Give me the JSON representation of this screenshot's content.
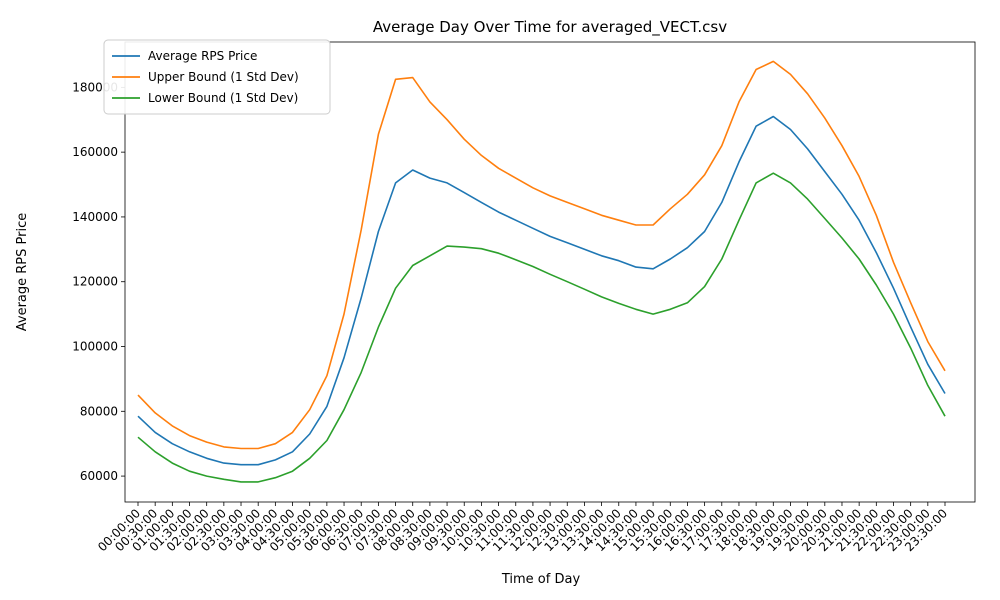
{
  "chart_data": {
    "type": "line",
    "title": "Average Day Over Time for averaged_VECT.csv",
    "xlabel": "Time of Day",
    "ylabel": "Average RPS Price",
    "ylim": [
      52000,
      194000
    ],
    "yticks": [
      60000,
      80000,
      100000,
      120000,
      140000,
      160000,
      180000
    ],
    "grid": false,
    "legend_position": "top-left",
    "categories": [
      "00:00:00",
      "00:30:00",
      "01:00:00",
      "01:30:00",
      "02:00:00",
      "02:30:00",
      "03:00:00",
      "03:30:00",
      "04:00:00",
      "04:30:00",
      "05:00:00",
      "05:30:00",
      "06:00:00",
      "06:30:00",
      "07:00:00",
      "07:30:00",
      "08:00:00",
      "08:30:00",
      "09:00:00",
      "09:30:00",
      "10:00:00",
      "10:30:00",
      "11:00:00",
      "11:30:00",
      "12:00:00",
      "12:30:00",
      "13:00:00",
      "13:30:00",
      "14:00:00",
      "14:30:00",
      "15:00:00",
      "15:30:00",
      "16:00:00",
      "16:30:00",
      "17:00:00",
      "17:30:00",
      "18:00:00",
      "18:30:00",
      "19:00:00",
      "19:30:00",
      "20:00:00",
      "20:30:00",
      "21:00:00",
      "21:30:00",
      "22:00:00",
      "22:30:00",
      "23:00:00",
      "23:30:00"
    ],
    "series": [
      {
        "name": "Average RPS Price",
        "color": "#1f77b4",
        "values": [
          78500,
          73500,
          70000,
          67500,
          65500,
          64000,
          63500,
          63500,
          65000,
          67500,
          73000,
          81500,
          96500,
          115000,
          135500,
          150500,
          154500,
          152000,
          150500,
          147500,
          144500,
          141500,
          139000,
          136500,
          134000,
          132000,
          130000,
          128000,
          126500,
          124500,
          124000,
          127000,
          130500,
          135500,
          144500,
          157000,
          168000,
          171000,
          167000,
          161000,
          154000,
          147000,
          139000,
          129000,
          118000,
          106000,
          94500,
          85500
        ]
      },
      {
        "name": "Upper Bound (1 Std Dev)",
        "color": "#ff7f0e",
        "values": [
          85000,
          79500,
          75500,
          72500,
          70500,
          69000,
          68500,
          68500,
          70000,
          73500,
          80500,
          91000,
          110000,
          136000,
          165500,
          182500,
          183000,
          175500,
          170000,
          164000,
          159000,
          155000,
          152000,
          149000,
          146500,
          144500,
          142500,
          140500,
          139000,
          137500,
          137500,
          142500,
          147000,
          153000,
          162000,
          175500,
          185500,
          188000,
          184000,
          178000,
          170500,
          162000,
          152500,
          140500,
          126000,
          113500,
          101500,
          92500
        ]
      },
      {
        "name": "Lower Bound (1 Std Dev)",
        "color": "#2ca02c",
        "values": [
          72000,
          67500,
          64000,
          61500,
          60000,
          59000,
          58200,
          58200,
          59500,
          61500,
          65500,
          71000,
          80500,
          92000,
          106000,
          118000,
          125000,
          128000,
          131000,
          130700,
          130200,
          128800,
          126800,
          124700,
          122300,
          120000,
          117700,
          115300,
          113300,
          111500,
          110000,
          111500,
          113500,
          118500,
          127000,
          139000,
          150500,
          153500,
          150500,
          145500,
          139500,
          133500,
          127000,
          119000,
          110000,
          99500,
          88000,
          78500
        ]
      }
    ]
  }
}
